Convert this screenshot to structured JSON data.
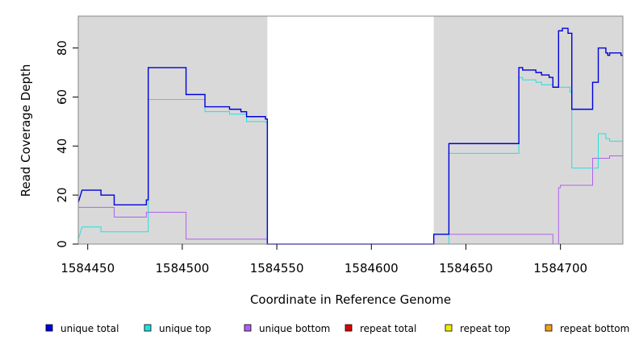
{
  "chart_data": {
    "type": "line",
    "xlabel": "Coordinate in Reference Genome",
    "ylabel": "Read Coverage Depth",
    "xlim": [
      1584445,
      1584733
    ],
    "ylim": [
      0,
      93
    ],
    "x_ticks": [
      1584450,
      1584500,
      1584550,
      1584600,
      1584650,
      1584700
    ],
    "y_ticks": [
      0,
      20,
      40,
      60,
      80
    ],
    "shaded_regions": [
      [
        1584445,
        1584545
      ],
      [
        1584633,
        1584733
      ]
    ],
    "legend_position": "bottom",
    "series": [
      {
        "name": "unique total",
        "color": "#0000dd",
        "points": [
          [
            1584445,
            17
          ],
          [
            1584447,
            22
          ],
          [
            1584457,
            22
          ],
          [
            1584457,
            20
          ],
          [
            1584464,
            20
          ],
          [
            1584464,
            16
          ],
          [
            1584481,
            16
          ],
          [
            1584481,
            18
          ],
          [
            1584482,
            18
          ],
          [
            1584482,
            72
          ],
          [
            1584502,
            72
          ],
          [
            1584502,
            61
          ],
          [
            1584512,
            61
          ],
          [
            1584512,
            56
          ],
          [
            1584525,
            56
          ],
          [
            1584525,
            55
          ],
          [
            1584531,
            55
          ],
          [
            1584531,
            54
          ],
          [
            1584534,
            54
          ],
          [
            1584534,
            52
          ],
          [
            1584544,
            52
          ],
          [
            1584544,
            51
          ],
          [
            1584545,
            51
          ],
          [
            1584545,
            0
          ],
          [
            1584633,
            0
          ],
          [
            1584633,
            4
          ],
          [
            1584641,
            4
          ],
          [
            1584641,
            41
          ],
          [
            1584678,
            41
          ],
          [
            1584678,
            72
          ],
          [
            1584680,
            72
          ],
          [
            1584680,
            71
          ],
          [
            1584687,
            71
          ],
          [
            1584687,
            70
          ],
          [
            1584690,
            70
          ],
          [
            1584690,
            69
          ],
          [
            1584694,
            69
          ],
          [
            1584694,
            68
          ],
          [
            1584696,
            68
          ],
          [
            1584696,
            64
          ],
          [
            1584699,
            64
          ],
          [
            1584699,
            87
          ],
          [
            1584701,
            87
          ],
          [
            1584701,
            88
          ],
          [
            1584704,
            88
          ],
          [
            1584704,
            86
          ],
          [
            1584706,
            86
          ],
          [
            1584706,
            55
          ],
          [
            1584717,
            55
          ],
          [
            1584717,
            66
          ],
          [
            1584720,
            66
          ],
          [
            1584720,
            80
          ],
          [
            1584724,
            80
          ],
          [
            1584724,
            78
          ],
          [
            1584725,
            78
          ],
          [
            1584725,
            77
          ],
          [
            1584726,
            77
          ],
          [
            1584726,
            78
          ],
          [
            1584732,
            78
          ],
          [
            1584732,
            77
          ],
          [
            1584733,
            77
          ]
        ]
      },
      {
        "name": "unique top",
        "color": "#22e0e0",
        "points": [
          [
            1584445,
            2
          ],
          [
            1584447,
            7
          ],
          [
            1584457,
            7
          ],
          [
            1584457,
            5
          ],
          [
            1584481,
            5
          ],
          [
            1584482,
            5
          ],
          [
            1584482,
            59
          ],
          [
            1584512,
            59
          ],
          [
            1584512,
            54
          ],
          [
            1584525,
            54
          ],
          [
            1584525,
            53
          ],
          [
            1584534,
            53
          ],
          [
            1584534,
            50
          ],
          [
            1584544,
            50
          ],
          [
            1584545,
            49
          ],
          [
            1584545,
            0
          ],
          [
            1584641,
            0
          ],
          [
            1584641,
            37
          ],
          [
            1584678,
            37
          ],
          [
            1584678,
            68
          ],
          [
            1584680,
            68
          ],
          [
            1584680,
            67
          ],
          [
            1584687,
            67
          ],
          [
            1584687,
            66
          ],
          [
            1584690,
            66
          ],
          [
            1584690,
            65
          ],
          [
            1584696,
            65
          ],
          [
            1584696,
            64
          ],
          [
            1584705,
            64
          ],
          [
            1584705,
            62
          ],
          [
            1584706,
            62
          ],
          [
            1584706,
            31
          ],
          [
            1584720,
            31
          ],
          [
            1584720,
            45
          ],
          [
            1584724,
            45
          ],
          [
            1584724,
            43
          ],
          [
            1584726,
            43
          ],
          [
            1584726,
            42
          ],
          [
            1584733,
            42
          ]
        ]
      },
      {
        "name": "unique bottom",
        "color": "#b060ee",
        "points": [
          [
            1584445,
            15
          ],
          [
            1584464,
            15
          ],
          [
            1584464,
            11
          ],
          [
            1584481,
            11
          ],
          [
            1584481,
            13
          ],
          [
            1584502,
            13
          ],
          [
            1584502,
            2
          ],
          [
            1584545,
            2
          ],
          [
            1584545,
            0
          ],
          [
            1584633,
            0
          ],
          [
            1584633,
            4
          ],
          [
            1584696,
            4
          ],
          [
            1584696,
            0
          ],
          [
            1584699,
            0
          ],
          [
            1584699,
            23
          ],
          [
            1584700,
            23
          ],
          [
            1584700,
            24
          ],
          [
            1584717,
            24
          ],
          [
            1584717,
            35
          ],
          [
            1584726,
            35
          ],
          [
            1584726,
            36
          ],
          [
            1584733,
            36
          ]
        ]
      },
      {
        "name": "repeat total",
        "color": "#dd0000",
        "points": [
          [
            1584445,
            0
          ],
          [
            1584733,
            0
          ]
        ]
      },
      {
        "name": "repeat top",
        "color": "#eeee00",
        "points": [
          [
            1584445,
            0
          ],
          [
            1584733,
            0
          ]
        ]
      },
      {
        "name": "repeat bottom",
        "color": "#f0a020",
        "points": [
          [
            1584445,
            0
          ],
          [
            1584733,
            0
          ]
        ]
      }
    ]
  }
}
